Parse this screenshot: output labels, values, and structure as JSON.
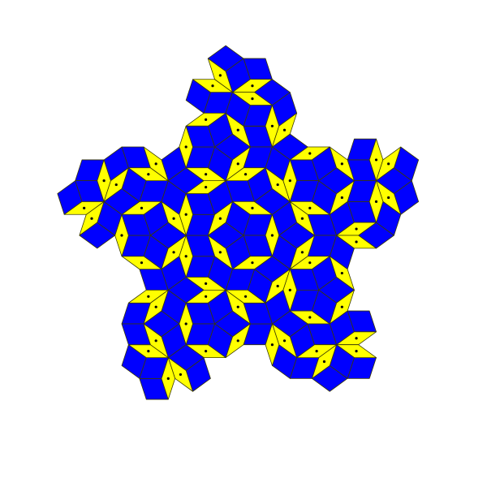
{
  "tiling": {
    "kind": "penrose-rhombus-p3",
    "symmetry": "5-fold",
    "deflation_level": 5,
    "colors": {
      "background": "#ffffff",
      "thick_rhombus": "#ffff00",
      "thin_rhombus": "#0000ff",
      "edge": "#3a3a00",
      "marker": "#000000"
    },
    "marks": {
      "thick_rhombus": "center-dot",
      "thin_rhombus": "none"
    }
  }
}
